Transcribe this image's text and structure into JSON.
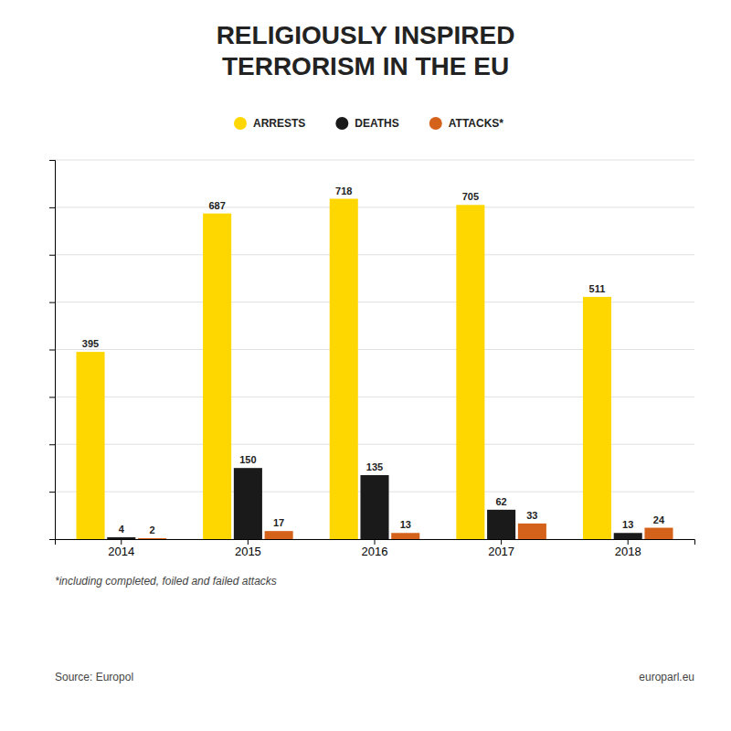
{
  "chart_data": {
    "type": "bar",
    "title": [
      "RELIGIOUSLY INSPIRED",
      "TERRORISM IN THE EU"
    ],
    "categories": [
      "2014",
      "2015",
      "2016",
      "2017",
      "2018"
    ],
    "series": [
      {
        "name": "ARRESTS",
        "color": "#FFD700",
        "values": [
          395,
          687,
          718,
          705,
          511
        ]
      },
      {
        "name": "DEATHS",
        "color": "#1a1a1a",
        "values": [
          4,
          150,
          135,
          62,
          13
        ]
      },
      {
        "name": "ATTACKS*",
        "color": "#D4621A",
        "values": [
          2,
          17,
          13,
          33,
          24
        ]
      }
    ],
    "ylim": [
      0,
      800
    ],
    "yticks": [
      0,
      100,
      200,
      300,
      400,
      500,
      600,
      700,
      800
    ],
    "grid": true,
    "legend": "top",
    "data_labels": true,
    "tick_labels": "x",
    "annotations": [
      "*including completed, foiled and failed attacks",
      "Source: Europol",
      "europarl.eu"
    ]
  }
}
